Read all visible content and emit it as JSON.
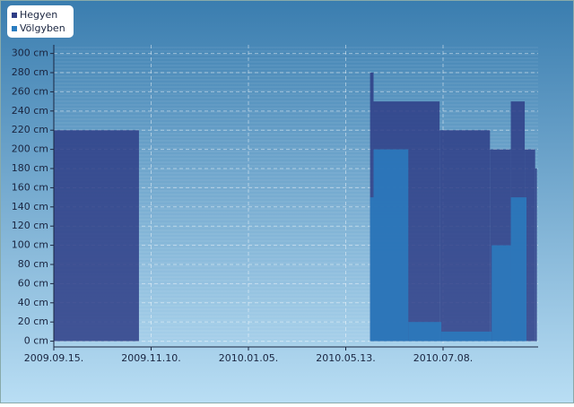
{
  "chart_data": {
    "type": "step-area",
    "series": [
      {
        "name": "Hegyen",
        "color": "#2e3d86",
        "x": [
          "2009.09.15",
          "2009.11.03",
          "2010.05.27",
          "2010.05.29",
          "2010.07.06",
          "2010.08.04",
          "2010.08.16",
          "2010.08.24",
          "2010.08.30",
          "2010.08.31"
        ],
        "values": [
          220,
          0,
          280,
          250,
          220,
          200,
          250,
          200,
          180,
          180
        ]
      },
      {
        "name": "Völgyben",
        "color": "#2a7cc0",
        "x": [
          "2009.09.15",
          "2010.05.27",
          "2010.05.29",
          "2010.06.18",
          "2010.07.07",
          "2010.08.05",
          "2010.08.16",
          "2010.08.25",
          "2010.08.31"
        ],
        "values": [
          0,
          150,
          200,
          20,
          10,
          100,
          150,
          0,
          0
        ]
      }
    ],
    "xlim": [
      "2009.09.15",
      "2010.08.31"
    ],
    "xticks": [
      {
        "value": "2009.09.15",
        "label": "2009.09.15."
      },
      {
        "value": "2009.11.10",
        "label": "2009.11.10."
      },
      {
        "value": "2010.01.05",
        "label": "2010.01.05."
      },
      {
        "value": "2010.05.13",
        "label": "2010.05.13."
      },
      {
        "value": "2010.07.08",
        "label": "2010.07.08."
      }
    ],
    "ylim": [
      -6,
      309
    ],
    "yticks": [
      {
        "value": 0,
        "label": "0 cm"
      },
      {
        "value": 20,
        "label": "20 cm"
      },
      {
        "value": 40,
        "label": "40 cm"
      },
      {
        "value": 60,
        "label": "60 cm"
      },
      {
        "value": 80,
        "label": "80 cm"
      },
      {
        "value": 100,
        "label": "100 cm"
      },
      {
        "value": 120,
        "label": "120 cm"
      },
      {
        "value": 140,
        "label": "140 cm"
      },
      {
        "value": 160,
        "label": "160 cm"
      },
      {
        "value": 180,
        "label": "180 cm"
      },
      {
        "value": 200,
        "label": "200 cm"
      },
      {
        "value": 220,
        "label": "220 cm"
      },
      {
        "value": 240,
        "label": "240 cm"
      },
      {
        "value": 260,
        "label": "260 cm"
      },
      {
        "value": 280,
        "label": "280 cm"
      },
      {
        "value": 300,
        "label": "300 cm"
      }
    ],
    "grid": true,
    "legend": "top-left"
  }
}
